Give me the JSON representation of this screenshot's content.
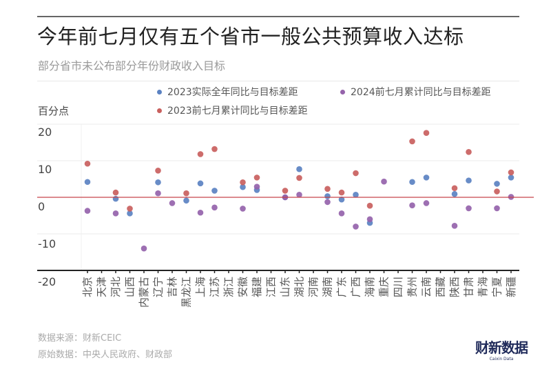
{
  "title": "今年前七月仅有五个省市一般公共预算收入达标",
  "subtitle": "部分省市未公布部分年份财政收入目标",
  "footer": {
    "source": "数据来源：财新CEIC",
    "original": "原始数据：中央人民政府、财政部"
  },
  "logo": {
    "cn": "财新数据",
    "en": "Caixin Data"
  },
  "chart_data": {
    "type": "scatter",
    "title": "今年前七月仅有五个省市一般公共预算收入达标",
    "subtitle": "部分省市未公布部分年份财政收入目标",
    "ylabel": "百分点",
    "ylim": [
      -20,
      20
    ],
    "yticks": [
      "20",
      "10",
      "0",
      "-10",
      "-20"
    ],
    "grid": true,
    "legend_position": "top",
    "reference_line": {
      "y": 0,
      "color": "#c8454a"
    },
    "categories": [
      "北京",
      "天津",
      "河北",
      "山西",
      "内蒙古",
      "辽宁",
      "吉林",
      "黑龙江",
      "上海",
      "江苏",
      "浙江",
      "安徽",
      "福建",
      "江西",
      "山东",
      "湖北",
      "河南",
      "湖南",
      "广东",
      "广西",
      "海南",
      "重庆",
      "四川",
      "贵州",
      "云南",
      "西藏",
      "陕西",
      "甘肃",
      "青海",
      "宁夏",
      "新疆"
    ],
    "series": [
      {
        "name": "2023实际全年同比与目标差距",
        "color": "#5b82c2",
        "values": [
          4.2,
          null,
          -0.4,
          -4.4,
          null,
          4.1,
          null,
          -0.9,
          3.8,
          1.8,
          null,
          2.8,
          2.0,
          null,
          0,
          7.7,
          null,
          0.3,
          -0.6,
          0.7,
          -7.0,
          null,
          null,
          4.2,
          5.4,
          null,
          0.9,
          4.6,
          null,
          3.7,
          5.4
        ]
      },
      {
        "name": "2024前七月累计同比与目标差距",
        "color": "#9563ab",
        "values": [
          -3.7,
          null,
          -4.4,
          null,
          -14.0,
          1.1,
          -1.6,
          null,
          -4.2,
          -2.8,
          null,
          -3.1,
          2.9,
          null,
          0,
          0.7,
          null,
          -1.3,
          -4.4,
          -8.0,
          -6.0,
          4.3,
          null,
          -2.2,
          -1.6,
          null,
          -7.8,
          -3.0,
          null,
          -3.0,
          0.1
        ]
      },
      {
        "name": "2023前七月累计同比与目标差距",
        "color": "#c9605e",
        "values": [
          9.2,
          null,
          1.3,
          -3.1,
          null,
          7.3,
          null,
          1.1,
          11.8,
          13.2,
          null,
          4.1,
          5.4,
          null,
          1.8,
          5.3,
          null,
          2.3,
          1.3,
          6.6,
          -2.3,
          null,
          null,
          15.3,
          17.6,
          null,
          2.5,
          12.4,
          null,
          1.6,
          6.8
        ]
      }
    ]
  }
}
